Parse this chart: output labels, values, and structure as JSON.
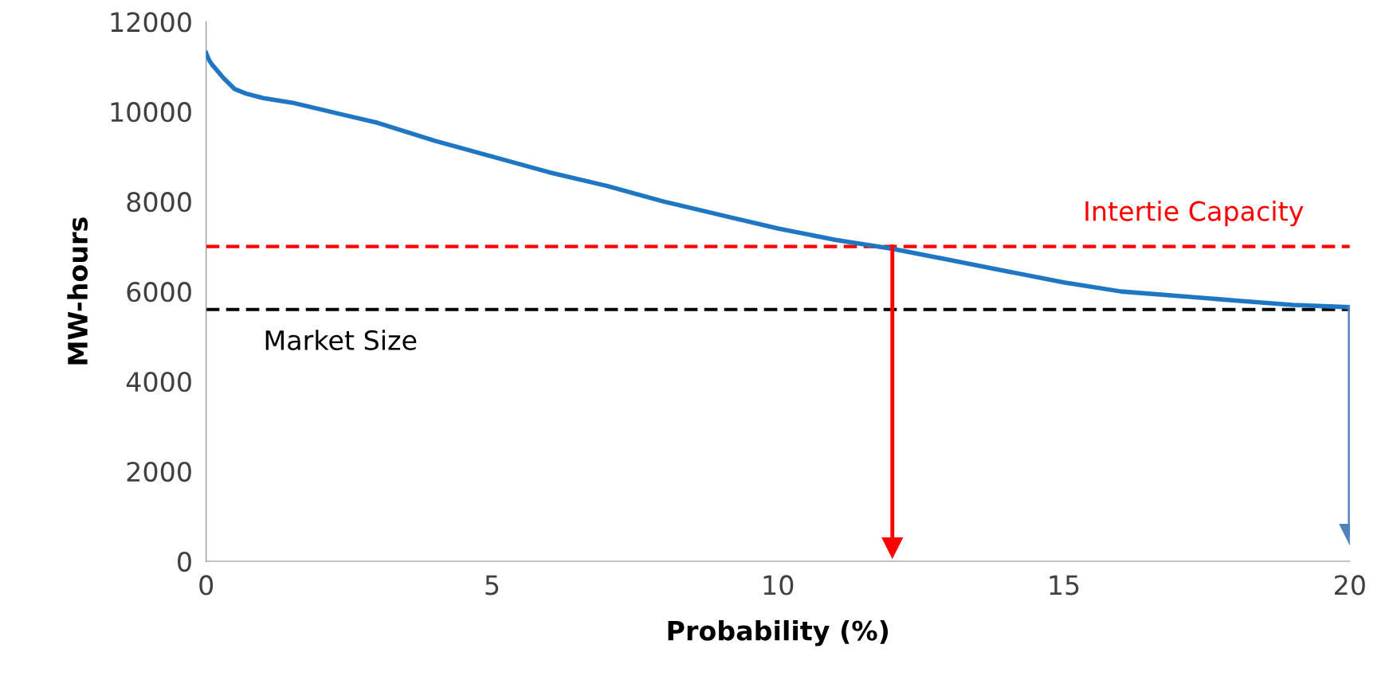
{
  "chart_data": {
    "type": "line",
    "xlabel": "Probability (%)",
    "ylabel": "MW-hours",
    "xlim": [
      0,
      20
    ],
    "xticks": [
      0,
      5,
      10,
      15,
      20
    ],
    "ylim": [
      0,
      12000
    ],
    "yticks": [
      0,
      2000,
      4000,
      6000,
      8000,
      10000,
      12000
    ],
    "grid": false,
    "marker": "none",
    "line_style": "solid",
    "series": [
      {
        "color": "#1f77c4",
        "x": [
          0,
          0.05,
          0.1,
          0.3,
          0.5,
          0.7,
          1,
          1.5,
          2,
          2.5,
          3,
          3.5,
          4,
          5,
          6,
          7,
          8,
          9,
          10,
          11,
          12,
          13,
          14,
          15,
          16,
          17,
          18,
          19,
          20
        ],
        "values": [
          11300,
          11150,
          11050,
          10750,
          10500,
          10400,
          10300,
          10200,
          10050,
          9900,
          9750,
          9550,
          9350,
          9000,
          8650,
          8350,
          8000,
          7700,
          7400,
          7150,
          6950,
          6700,
          6450,
          6200,
          6000,
          5900,
          5800,
          5700,
          5650
        ]
      },
      {
        "type": "line",
        "marker": "triangle",
        "color": "#ff0000",
        "x": [
          12,
          12
        ],
        "values": [
          7000,
          300
        ]
      },
      {
        "type": "line",
        "marker": "triangle",
        "color": "#4f81bd",
        "x": [
          20,
          20
        ],
        "values": [
          5650,
          600
        ]
      }
    ],
    "ref_lines": [
      {
        "axis": "y",
        "value": 7000,
        "label": "Intertie Capacity",
        "color": "#ff0000",
        "line_style": "dashed"
      },
      {
        "axis": "y",
        "value": 5600,
        "label": "Market Size",
        "color": "#000000",
        "line_style": "dashed"
      }
    ]
  }
}
